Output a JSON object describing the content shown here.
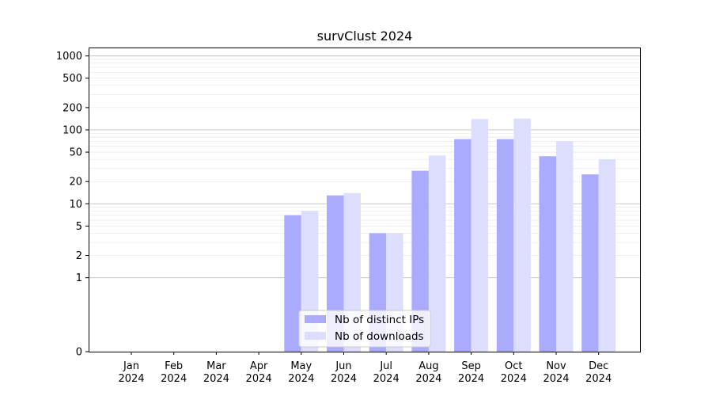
{
  "chart_data": {
    "type": "bar",
    "title": "survClust 2024",
    "xlabel": "",
    "ylabel": "",
    "yscale": "symlog",
    "ylim": [
      0,
      1300
    ],
    "yticks": [
      0,
      1,
      2,
      5,
      10,
      20,
      50,
      100,
      200,
      500,
      1000
    ],
    "grid": true,
    "legend_position": "lower-center",
    "categories": [
      {
        "month": "Jan",
        "year": "2024"
      },
      {
        "month": "Feb",
        "year": "2024"
      },
      {
        "month": "Mar",
        "year": "2024"
      },
      {
        "month": "Apr",
        "year": "2024"
      },
      {
        "month": "May",
        "year": "2024"
      },
      {
        "month": "Jun",
        "year": "2024"
      },
      {
        "month": "Jul",
        "year": "2024"
      },
      {
        "month": "Aug",
        "year": "2024"
      },
      {
        "month": "Sep",
        "year": "2024"
      },
      {
        "month": "Oct",
        "year": "2024"
      },
      {
        "month": "Nov",
        "year": "2024"
      },
      {
        "month": "Dec",
        "year": "2024"
      }
    ],
    "series": [
      {
        "name": "Nb of distinct IPs",
        "color": "#aaaaff",
        "values": [
          0,
          0,
          0,
          0,
          7,
          13,
          4,
          28,
          75,
          75,
          44,
          25
        ]
      },
      {
        "name": "Nb of downloads",
        "color": "#ddddff",
        "values": [
          0,
          0,
          0,
          0,
          8,
          14,
          4,
          45,
          140,
          142,
          70,
          40
        ]
      }
    ]
  }
}
